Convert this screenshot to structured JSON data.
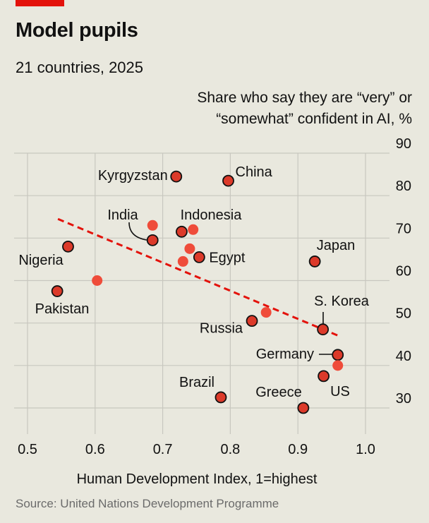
{
  "title": "Model pupils",
  "subtitle": "21 countries, 2025",
  "source": "Source: United Nations Development Programme",
  "colors": {
    "accent": "#e3120b",
    "dark_point": "#dc3a2a",
    "light_point": "#ef4c3a",
    "trend": "#e3120b",
    "grid": "#c8c7bf",
    "background": "#e9e8de"
  },
  "chart_data": {
    "type": "scatter",
    "xlabel": "Human Development Index, 1=highest",
    "ylabel_line1": "Share who say they are “very” or",
    "ylabel_line2": "“somewhat” confident in AI, %",
    "xlim": [
      0.5,
      1.0
    ],
    "ylim": [
      30,
      90
    ],
    "x_ticks": [
      "0.5",
      "0.6",
      "0.7",
      "0.8",
      "0.9",
      "1.0"
    ],
    "y_ticks": [
      "30",
      "40",
      "50",
      "60",
      "70",
      "80",
      "90"
    ],
    "grid": true,
    "trendline": {
      "x": [
        0.545,
        0.96
      ],
      "y": [
        74.5,
        47
      ]
    },
    "points": [
      {
        "label": "Kyrgyzstan",
        "x": 0.72,
        "y": 84.5,
        "outlined": true
      },
      {
        "label": "China",
        "x": 0.797,
        "y": 83.5,
        "outlined": true
      },
      {
        "label": "",
        "x": 0.685,
        "y": 73.0,
        "outlined": false
      },
      {
        "label": "India",
        "x": 0.685,
        "y": 69.5,
        "outlined": true
      },
      {
        "label": "",
        "x": 0.745,
        "y": 72.0,
        "outlined": false
      },
      {
        "label": "Indonesia",
        "x": 0.728,
        "y": 71.5,
        "outlined": true
      },
      {
        "label": "Nigeria",
        "x": 0.56,
        "y": 68.0,
        "outlined": true
      },
      {
        "label": "",
        "x": 0.74,
        "y": 67.5,
        "outlined": false
      },
      {
        "label": "Egypt",
        "x": 0.754,
        "y": 65.5,
        "outlined": true
      },
      {
        "label": "",
        "x": 0.73,
        "y": 64.5,
        "outlined": false
      },
      {
        "label": "Japan",
        "x": 0.925,
        "y": 64.5,
        "outlined": true
      },
      {
        "label": "",
        "x": 0.603,
        "y": 60.0,
        "outlined": false
      },
      {
        "label": "Pakistan",
        "x": 0.544,
        "y": 57.5,
        "outlined": true
      },
      {
        "label": "",
        "x": 0.853,
        "y": 52.5,
        "outlined": false
      },
      {
        "label": "Russia",
        "x": 0.832,
        "y": 50.5,
        "outlined": true
      },
      {
        "label": "S. Korea",
        "x": 0.937,
        "y": 48.5,
        "outlined": true
      },
      {
        "label": "Germany",
        "x": 0.959,
        "y": 42.5,
        "outlined": true
      },
      {
        "label": "",
        "x": 0.959,
        "y": 40.0,
        "outlined": false
      },
      {
        "label": "US",
        "x": 0.938,
        "y": 37.5,
        "outlined": true
      },
      {
        "label": "Brazil",
        "x": 0.786,
        "y": 32.5,
        "outlined": true
      },
      {
        "label": "Greece",
        "x": 0.908,
        "y": 30.0,
        "outlined": true
      }
    ]
  }
}
